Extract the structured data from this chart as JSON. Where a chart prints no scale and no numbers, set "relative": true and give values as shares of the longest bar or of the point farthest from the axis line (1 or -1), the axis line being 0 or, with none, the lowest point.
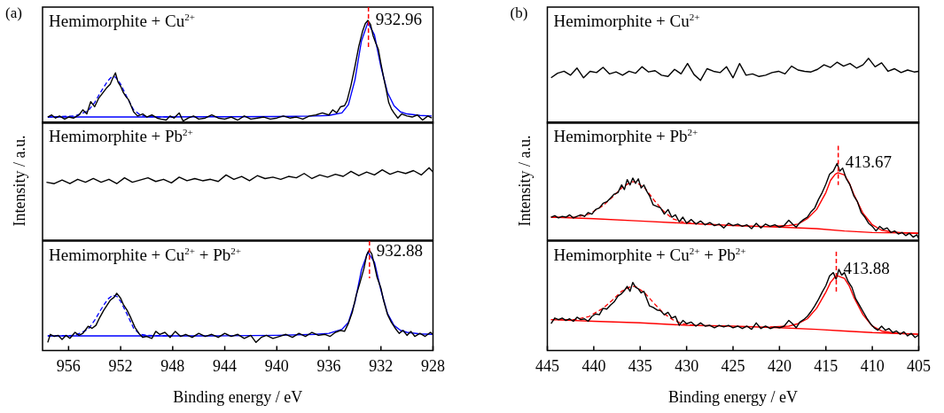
{
  "chart_data": [
    {
      "type": "line",
      "title": "(a)",
      "relative": true,
      "xlim": [
        958,
        928
      ],
      "tick_labels": false,
      "annotations": [
        "Hemimorphite + Cu$^{2+}$"
      ],
      "ref_lines": [
        {
          "axis": "x",
          "value": 932.96,
          "label": "932.96",
          "color": "#ff0000",
          "line_style": "dashed"
        }
      ],
      "series": [
        {
          "color": "#000000",
          "x": [
            957.6,
            957.3,
            957.0,
            956.7,
            956.3,
            956.0,
            955.6,
            955.2,
            954.9,
            954.6,
            954.3,
            954.0,
            953.7,
            953.4,
            953.1,
            952.8,
            952.6,
            952.4,
            952.2,
            952.0,
            951.8,
            951.6,
            951.4,
            951.2,
            951.0,
            950.7,
            950.3,
            950.0,
            949.6,
            949.2,
            948.9,
            948.5,
            948.2,
            947.9,
            947.5,
            947.2,
            946.8,
            946.4,
            946.0,
            945.5,
            945.0,
            944.5,
            944.0,
            943.5,
            943.0,
            942.5,
            942.0,
            941.5,
            941.0,
            940.5,
            940.0,
            939.5,
            939.0,
            938.5,
            938.0,
            937.5,
            937.0,
            936.5,
            936.0,
            935.7,
            935.4,
            935.1,
            934.8,
            934.6,
            934.3,
            934.0,
            933.7,
            933.4,
            933.2,
            933.0,
            932.8,
            932.6,
            932.4,
            932.2,
            932.0,
            931.8,
            931.6,
            931.4,
            931.2,
            931.0,
            930.7,
            930.4,
            930.0,
            929.6,
            929.2,
            928.8,
            928.4,
            928.1
          ],
          "values": [
            0.06,
            0.08,
            0.05,
            0.07,
            0.04,
            0.06,
            0.05,
            0.08,
            0.13,
            0.09,
            0.21,
            0.16,
            0.24,
            0.29,
            0.34,
            0.38,
            0.44,
            0.49,
            0.4,
            0.36,
            0.3,
            0.26,
            0.23,
            0.17,
            0.11,
            0.07,
            0.09,
            0.06,
            0.08,
            0.05,
            0.04,
            0.03,
            0.07,
            0.05,
            0.1,
            0.02,
            0.05,
            0.07,
            0.04,
            0.05,
            0.08,
            0.05,
            0.04,
            0.06,
            0.03,
            0.07,
            0.04,
            0.05,
            0.06,
            0.04,
            0.05,
            0.07,
            0.05,
            0.06,
            0.04,
            0.07,
            0.08,
            0.1,
            0.08,
            0.13,
            0.1,
            0.16,
            0.17,
            0.22,
            0.37,
            0.55,
            0.75,
            0.9,
            0.97,
            1.0,
            0.96,
            0.85,
            0.78,
            0.72,
            0.58,
            0.45,
            0.33,
            0.2,
            0.14,
            0.1,
            0.05,
            0.09,
            0.07,
            0.06,
            0.08,
            0.03,
            0.07,
            0.05
          ]
        },
        {
          "color": "#0000ff",
          "x": [
            957.6,
            950,
            945,
            940,
            937,
            936,
            935,
            934.5,
            934,
            933.5,
            933,
            932.5,
            932,
            931.5,
            931,
            930.5,
            930,
            929,
            928.1
          ],
          "values": [
            0.06,
            0.06,
            0.062,
            0.065,
            0.07,
            0.075,
            0.1,
            0.18,
            0.42,
            0.8,
            0.98,
            0.86,
            0.55,
            0.3,
            0.17,
            0.11,
            0.09,
            0.075,
            0.07
          ]
        },
        {
          "color": "#0000ff",
          "line_style": "dashed",
          "x": [
            957.6,
            955.5,
            954.5,
            954,
            953.5,
            953,
            952.7,
            952.4,
            952,
            951.5,
            951,
            950.5,
            950,
            948
          ],
          "values": [
            0.06,
            0.07,
            0.12,
            0.2,
            0.31,
            0.41,
            0.45,
            0.45,
            0.38,
            0.25,
            0.13,
            0.08,
            0.065,
            0.06
          ]
        }
      ]
    },
    {
      "type": "line",
      "relative": true,
      "xlim": [
        958,
        928
      ],
      "tick_labels": false,
      "ylabel": "Intensity / a.u.",
      "annotations": [
        "Hemimorphite + Pb$^{2+}$"
      ],
      "series": [
        {
          "color": "#000000",
          "x": [
            957.7,
            957.1,
            956.5,
            955.9,
            955.3,
            954.7,
            954.1,
            953.5,
            952.9,
            952.3,
            951.7,
            951.1,
            950.5,
            949.9,
            949.3,
            948.7,
            948.1,
            947.5,
            946.9,
            946.3,
            945.7,
            945.1,
            944.5,
            943.9,
            943.3,
            942.7,
            942.1,
            941.5,
            940.9,
            940.3,
            939.7,
            939.1,
            938.5,
            937.9,
            937.3,
            936.7,
            936.1,
            935.5,
            934.9,
            934.3,
            933.7,
            933.1,
            932.5,
            931.9,
            931.3,
            930.7,
            930.1,
            929.5,
            928.9,
            928.3,
            928.0
          ],
          "values": [
            0.8,
            0.78,
            0.83,
            0.78,
            0.84,
            0.8,
            0.85,
            0.8,
            0.84,
            0.78,
            0.86,
            0.8,
            0.83,
            0.86,
            0.81,
            0.84,
            0.79,
            0.87,
            0.82,
            0.85,
            0.82,
            0.84,
            0.81,
            0.9,
            0.84,
            0.88,
            0.82,
            0.89,
            0.85,
            0.87,
            0.84,
            0.88,
            0.86,
            0.92,
            0.85,
            0.9,
            0.87,
            0.91,
            0.88,
            0.95,
            0.89,
            0.94,
            0.9,
            0.97,
            0.91,
            0.95,
            0.92,
            0.96,
            0.9,
            1.0,
            0.94
          ]
        }
      ]
    },
    {
      "type": "line",
      "relative": true,
      "xlim": [
        958,
        928
      ],
      "xticks": [
        956,
        952,
        948,
        944,
        940,
        936,
        932,
        928
      ],
      "xlabel": "Binding energy / eV",
      "annotations": [
        "Hemimorphite + Cu$^{2+}$ + Pb$^{2+}$"
      ],
      "ref_lines": [
        {
          "axis": "x",
          "value": 932.88,
          "label": "932.88",
          "color": "#ff0000",
          "line_style": "dashed"
        }
      ],
      "series": [
        {
          "color": "#000000",
          "x": [
            957.6,
            957.4,
            957.1,
            956.8,
            956.5,
            956.2,
            955.9,
            955.5,
            955.2,
            954.9,
            954.5,
            954.2,
            953.9,
            953.6,
            953.3,
            953.0,
            952.8,
            952.5,
            952.3,
            952.0,
            951.8,
            951.5,
            951.2,
            950.9,
            950.6,
            950.3,
            950.0,
            949.6,
            949.3,
            949.0,
            948.6,
            948.2,
            947.8,
            947.4,
            947.0,
            946.5,
            946.0,
            945.5,
            945.0,
            944.5,
            944.0,
            943.5,
            943.0,
            942.5,
            942.0,
            941.6,
            941.2,
            940.8,
            940.3,
            939.8,
            939.3,
            938.8,
            938.3,
            937.8,
            937.3,
            936.8,
            936.3,
            935.9,
            935.5,
            935.1,
            934.8,
            934.5,
            934.2,
            933.9,
            933.6,
            933.3,
            933.1,
            932.9,
            932.7,
            932.5,
            932.3,
            932.0,
            931.8,
            931.5,
            931.2,
            930.9,
            930.6,
            930.3,
            930.0,
            929.7,
            929.4,
            929.0,
            928.6,
            928.2,
            928.0
          ],
          "values": [
            0.08,
            0.16,
            0.14,
            0.15,
            0.11,
            0.15,
            0.12,
            0.18,
            0.15,
            0.17,
            0.24,
            0.22,
            0.25,
            0.33,
            0.4,
            0.46,
            0.5,
            0.53,
            0.57,
            0.52,
            0.46,
            0.4,
            0.32,
            0.23,
            0.17,
            0.13,
            0.14,
            0.12,
            0.19,
            0.16,
            0.18,
            0.13,
            0.19,
            0.14,
            0.16,
            0.13,
            0.17,
            0.14,
            0.16,
            0.13,
            0.17,
            0.14,
            0.16,
            0.12,
            0.15,
            0.08,
            0.13,
            0.15,
            0.12,
            0.14,
            0.16,
            0.13,
            0.17,
            0.14,
            0.18,
            0.15,
            0.16,
            0.14,
            0.18,
            0.2,
            0.19,
            0.27,
            0.38,
            0.55,
            0.68,
            0.82,
            0.95,
            1.0,
            0.96,
            0.85,
            0.73,
            0.62,
            0.5,
            0.36,
            0.28,
            0.22,
            0.17,
            0.2,
            0.15,
            0.19,
            0.14,
            0.17,
            0.14,
            0.18,
            0.16
          ]
        },
        {
          "color": "#0000ff",
          "x": [
            957.6,
            945,
            940,
            937,
            936,
            935,
            934.5,
            934,
            933.5,
            933,
            932.5,
            932,
            931.5,
            931,
            930.5,
            930,
            929,
            928
          ],
          "values": [
            0.145,
            0.145,
            0.15,
            0.16,
            0.17,
            0.21,
            0.28,
            0.48,
            0.8,
            0.98,
            0.88,
            0.6,
            0.37,
            0.25,
            0.2,
            0.18,
            0.165,
            0.16
          ]
        },
        {
          "color": "#0000ff",
          "line_style": "dashed",
          "x": [
            957.6,
            955.5,
            954.5,
            954,
            953.5,
            953,
            952.6,
            952.3,
            952,
            951.5,
            951,
            950.5,
            950,
            948
          ],
          "values": [
            0.145,
            0.15,
            0.21,
            0.3,
            0.41,
            0.51,
            0.55,
            0.54,
            0.49,
            0.36,
            0.22,
            0.16,
            0.15,
            0.145
          ]
        }
      ]
    },
    {
      "type": "line",
      "title": "(b)",
      "relative": true,
      "xlim": [
        445,
        405
      ],
      "tick_labels": false,
      "annotations": [
        "Hemimorphite + Cu$^{2+}$"
      ],
      "series": [
        {
          "color": "#000000",
          "x": [
            444.6,
            443.9,
            443.2,
            442.5,
            441.8,
            441.1,
            440.4,
            439.7,
            439.0,
            438.3,
            437.6,
            436.9,
            436.2,
            435.5,
            434.8,
            434.1,
            433.4,
            432.7,
            432.0,
            431.3,
            430.6,
            429.9,
            429.2,
            428.5,
            427.8,
            427.1,
            426.4,
            425.7,
            425.0,
            424.3,
            423.6,
            422.9,
            422.2,
            421.5,
            420.8,
            420.1,
            419.4,
            418.7,
            418.0,
            417.3,
            416.6,
            415.9,
            415.2,
            414.5,
            413.8,
            413.1,
            412.4,
            411.7,
            411.0,
            410.4,
            409.7,
            409.0,
            408.3,
            407.6,
            406.9,
            406.2,
            405.5,
            405.0
          ],
          "values": [
            0.7,
            0.77,
            0.8,
            0.74,
            0.85,
            0.7,
            0.8,
            0.78,
            0.86,
            0.76,
            0.79,
            0.74,
            0.8,
            0.77,
            0.87,
            0.79,
            0.81,
            0.74,
            0.72,
            0.83,
            0.76,
            0.92,
            0.75,
            0.66,
            0.84,
            0.8,
            0.78,
            0.87,
            0.7,
            0.92,
            0.74,
            0.76,
            0.72,
            0.74,
            0.78,
            0.8,
            0.76,
            0.88,
            0.82,
            0.8,
            0.79,
            0.83,
            0.9,
            0.86,
            0.94,
            0.88,
            0.92,
            0.85,
            0.9,
            1.0,
            0.87,
            0.93,
            0.8,
            0.84,
            0.78,
            0.82,
            0.79,
            0.8
          ]
        }
      ]
    },
    {
      "type": "line",
      "relative": true,
      "xlim": [
        445,
        405
      ],
      "tick_labels": false,
      "ylabel": "Intensity / a.u.",
      "annotations": [
        "Hemimorphite + Pb$^{2+}$"
      ],
      "ref_lines": [
        {
          "axis": "x",
          "value": 413.67,
          "label": "413.67",
          "color": "#ff0000",
          "line_style": "dashed"
        }
      ],
      "series": [
        {
          "color": "#000000",
          "x": [
            444.6,
            444.2,
            443.8,
            443.4,
            443.0,
            442.6,
            442.2,
            441.8,
            441.4,
            441.0,
            440.6,
            440.2,
            439.8,
            439.4,
            439.0,
            438.6,
            438.2,
            437.8,
            437.4,
            437.0,
            436.7,
            436.4,
            436.1,
            435.8,
            435.5,
            435.2,
            434.9,
            434.6,
            434.3,
            434.0,
            433.6,
            433.2,
            432.8,
            432.4,
            432.0,
            431.6,
            431.2,
            430.8,
            430.4,
            430.0,
            429.5,
            429.0,
            428.5,
            428.0,
            427.5,
            427.0,
            426.5,
            426.0,
            425.5,
            425.0,
            424.5,
            424.0,
            423.5,
            423.0,
            422.5,
            422.0,
            421.5,
            421.0,
            420.5,
            420.0,
            419.5,
            419.0,
            418.6,
            418.2,
            417.8,
            417.4,
            417.0,
            416.6,
            416.2,
            415.8,
            415.4,
            415.0,
            414.6,
            414.2,
            413.8,
            413.5,
            413.2,
            412.8,
            412.4,
            412.0,
            411.6,
            411.2,
            410.8,
            410.4,
            410.0,
            409.6,
            409.2,
            408.8,
            408.4,
            408.0,
            407.6,
            407.2,
            406.8,
            406.4,
            406.0,
            405.6,
            405.2,
            405.0
          ],
          "values": [
            0.3,
            0.32,
            0.29,
            0.31,
            0.3,
            0.33,
            0.29,
            0.31,
            0.33,
            0.31,
            0.36,
            0.34,
            0.4,
            0.42,
            0.48,
            0.5,
            0.55,
            0.6,
            0.62,
            0.72,
            0.66,
            0.79,
            0.72,
            0.81,
            0.74,
            0.8,
            0.68,
            0.72,
            0.64,
            0.58,
            0.46,
            0.44,
            0.42,
            0.34,
            0.4,
            0.3,
            0.33,
            0.24,
            0.3,
            0.22,
            0.27,
            0.21,
            0.25,
            0.2,
            0.23,
            0.19,
            0.21,
            0.16,
            0.22,
            0.19,
            0.21,
            0.18,
            0.2,
            0.15,
            0.22,
            0.16,
            0.21,
            0.18,
            0.2,
            0.17,
            0.19,
            0.26,
            0.21,
            0.17,
            0.23,
            0.27,
            0.3,
            0.37,
            0.42,
            0.53,
            0.62,
            0.73,
            0.86,
            0.9,
            1.0,
            0.9,
            0.94,
            0.8,
            0.72,
            0.58,
            0.5,
            0.36,
            0.3,
            0.22,
            0.18,
            0.12,
            0.18,
            0.14,
            0.16,
            0.1,
            0.12,
            0.08,
            0.1,
            0.06,
            0.09,
            0.04,
            0.07,
            0.02
          ]
        },
        {
          "color": "#ff0000",
          "x": [
            444.6,
            440,
            435,
            430,
            425,
            420,
            416,
            413,
            410,
            405
          ],
          "values": [
            0.3,
            0.28,
            0.25,
            0.22,
            0.19,
            0.17,
            0.15,
            0.12,
            0.1,
            0.09
          ]
        },
        {
          "color": "#ff0000",
          "x": [
            421,
            419,
            418,
            417,
            416,
            415,
            414.5,
            414,
            413.7,
            413,
            412.5,
            412,
            411,
            410,
            409,
            408,
            407,
            405
          ],
          "values": [
            0.18,
            0.19,
            0.21,
            0.28,
            0.4,
            0.62,
            0.78,
            0.86,
            0.88,
            0.85,
            0.75,
            0.6,
            0.35,
            0.2,
            0.13,
            0.11,
            0.1,
            0.09
          ]
        },
        {
          "color": "#ff0000",
          "line_style": "dashed",
          "x": [
            444.6,
            442,
            440.5,
            439,
            438,
            437,
            436,
            435.5,
            434.5,
            433.5,
            432.5,
            431.5,
            430.5,
            429
          ],
          "values": [
            0.3,
            0.3,
            0.34,
            0.45,
            0.56,
            0.68,
            0.76,
            0.76,
            0.68,
            0.52,
            0.38,
            0.28,
            0.24,
            0.22
          ]
        }
      ]
    },
    {
      "type": "line",
      "relative": true,
      "xlim": [
        445,
        405
      ],
      "xticks": [
        445,
        440,
        435,
        430,
        425,
        420,
        415,
        410,
        405
      ],
      "xlabel": "Binding energy / eV",
      "annotations": [
        "Hemimorphite + Cu$^{2+}$ + Pb$^{2+}$"
      ],
      "ref_lines": [
        {
          "axis": "x",
          "value": 413.88,
          "label": "413.88",
          "color": "#ff0000",
          "line_style": "dashed"
        }
      ],
      "series": [
        {
          "color": "#000000",
          "x": [
            444.6,
            444.2,
            443.8,
            443.4,
            443.0,
            442.6,
            442.2,
            441.8,
            441.4,
            441.0,
            440.6,
            440.2,
            439.8,
            439.4,
            439.0,
            438.6,
            438.2,
            437.8,
            437.4,
            437.0,
            436.7,
            436.4,
            436.1,
            435.8,
            435.5,
            435.2,
            434.9,
            434.6,
            434.3,
            434.0,
            433.6,
            433.2,
            432.8,
            432.4,
            432.0,
            431.6,
            431.2,
            430.8,
            430.4,
            430.0,
            429.5,
            429.0,
            428.5,
            428.0,
            427.5,
            427.0,
            426.5,
            426.0,
            425.5,
            425.0,
            424.5,
            424.0,
            423.5,
            423.0,
            422.5,
            422.0,
            421.5,
            421.0,
            420.5,
            420.0,
            419.5,
            419.0,
            418.6,
            418.2,
            417.8,
            417.4,
            417.0,
            416.6,
            416.2,
            415.8,
            415.4,
            415.0,
            414.6,
            414.2,
            413.9,
            413.6,
            413.3,
            413.0,
            412.6,
            412.2,
            411.8,
            411.4,
            411.0,
            410.6,
            410.2,
            409.8,
            409.4,
            409.0,
            408.6,
            408.2,
            407.8,
            407.4,
            407.0,
            406.6,
            406.2,
            405.8,
            405.4,
            405.0
          ],
          "values": [
            0.33,
            0.4,
            0.38,
            0.4,
            0.37,
            0.39,
            0.36,
            0.41,
            0.38,
            0.39,
            0.36,
            0.42,
            0.45,
            0.44,
            0.52,
            0.51,
            0.56,
            0.6,
            0.67,
            0.7,
            0.74,
            0.79,
            0.73,
            0.84,
            0.78,
            0.76,
            0.71,
            0.73,
            0.64,
            0.55,
            0.53,
            0.5,
            0.49,
            0.44,
            0.47,
            0.4,
            0.42,
            0.31,
            0.37,
            0.33,
            0.35,
            0.3,
            0.34,
            0.3,
            0.31,
            0.28,
            0.31,
            0.29,
            0.31,
            0.28,
            0.3,
            0.27,
            0.3,
            0.26,
            0.34,
            0.27,
            0.3,
            0.27,
            0.29,
            0.28,
            0.3,
            0.37,
            0.33,
            0.28,
            0.35,
            0.38,
            0.42,
            0.48,
            0.55,
            0.63,
            0.72,
            0.8,
            0.92,
            0.96,
            0.88,
            1.0,
            0.93,
            0.96,
            0.85,
            0.78,
            0.64,
            0.56,
            0.48,
            0.4,
            0.33,
            0.28,
            0.25,
            0.3,
            0.25,
            0.27,
            0.22,
            0.24,
            0.2,
            0.23,
            0.18,
            0.21,
            0.16,
            0.19
          ]
        },
        {
          "color": "#ff0000",
          "x": [
            444.6,
            440,
            435,
            430,
            425,
            420,
            416,
            413,
            410,
            405
          ],
          "values": [
            0.38,
            0.36,
            0.34,
            0.31,
            0.3,
            0.28,
            0.26,
            0.24,
            0.22,
            0.2
          ]
        },
        {
          "color": "#ff0000",
          "x": [
            421,
            419,
            418,
            417,
            416,
            415,
            414.5,
            414,
            413.7,
            413,
            412.5,
            412,
            411,
            410,
            409,
            408,
            407,
            405
          ],
          "values": [
            0.29,
            0.3,
            0.33,
            0.39,
            0.52,
            0.72,
            0.84,
            0.91,
            0.92,
            0.89,
            0.8,
            0.66,
            0.44,
            0.3,
            0.24,
            0.22,
            0.21,
            0.2
          ]
        },
        {
          "color": "#ff0000",
          "line_style": "dashed",
          "x": [
            444.6,
            442,
            440.5,
            439,
            438,
            437,
            436,
            435.5,
            434.5,
            433.5,
            432.5,
            431.5,
            430.5,
            429
          ],
          "values": [
            0.38,
            0.38,
            0.42,
            0.52,
            0.62,
            0.73,
            0.79,
            0.79,
            0.71,
            0.58,
            0.46,
            0.38,
            0.33,
            0.31
          ]
        }
      ]
    }
  ]
}
